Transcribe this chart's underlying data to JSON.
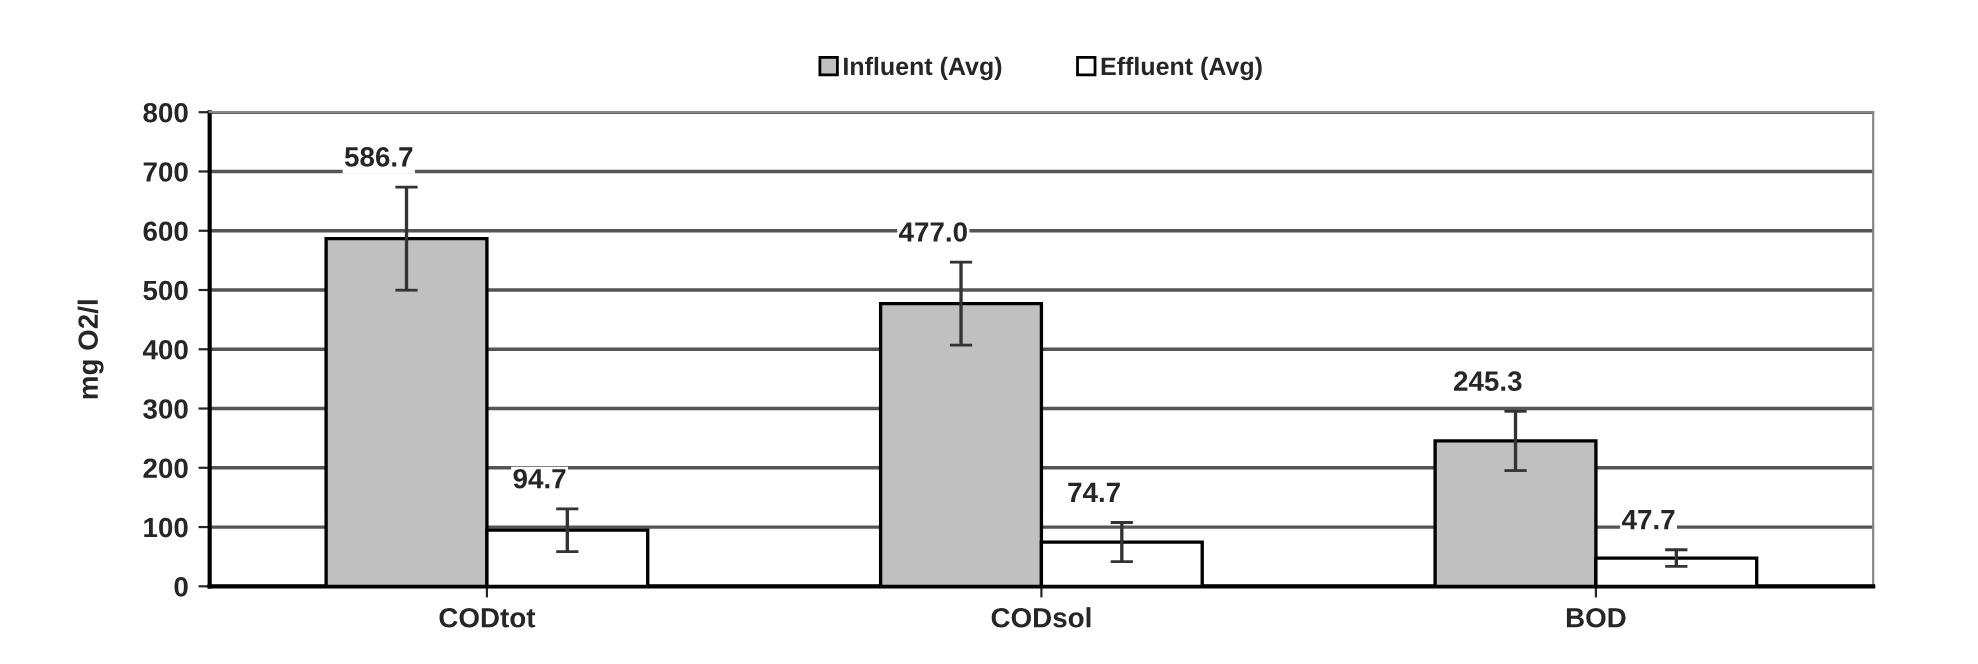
{
  "chart_data": {
    "type": "bar",
    "ylabel": "mg O2/l",
    "categories": [
      "CODtot",
      "CODsol",
      "BOD"
    ],
    "series": [
      {
        "name": "Influent (Avg)",
        "color": "#c0c0c0",
        "values": [
          586.7,
          477.0,
          245.3
        ],
        "errors": [
          87,
          70,
          50
        ],
        "value_labels": [
          "586.7",
          "477.0",
          "245.3"
        ]
      },
      {
        "name": "Effluent (Avg)",
        "color": "#ffffff",
        "values": [
          94.7,
          74.7,
          47.7
        ],
        "errors": [
          36,
          33,
          14
        ],
        "value_labels": [
          "94.7",
          "74.7",
          "47.7"
        ]
      }
    ],
    "ylim": [
      0,
      800
    ],
    "yticks": [
      0,
      100,
      200,
      300,
      400,
      500,
      600,
      700,
      800
    ],
    "grid": "y",
    "legend": "top"
  }
}
